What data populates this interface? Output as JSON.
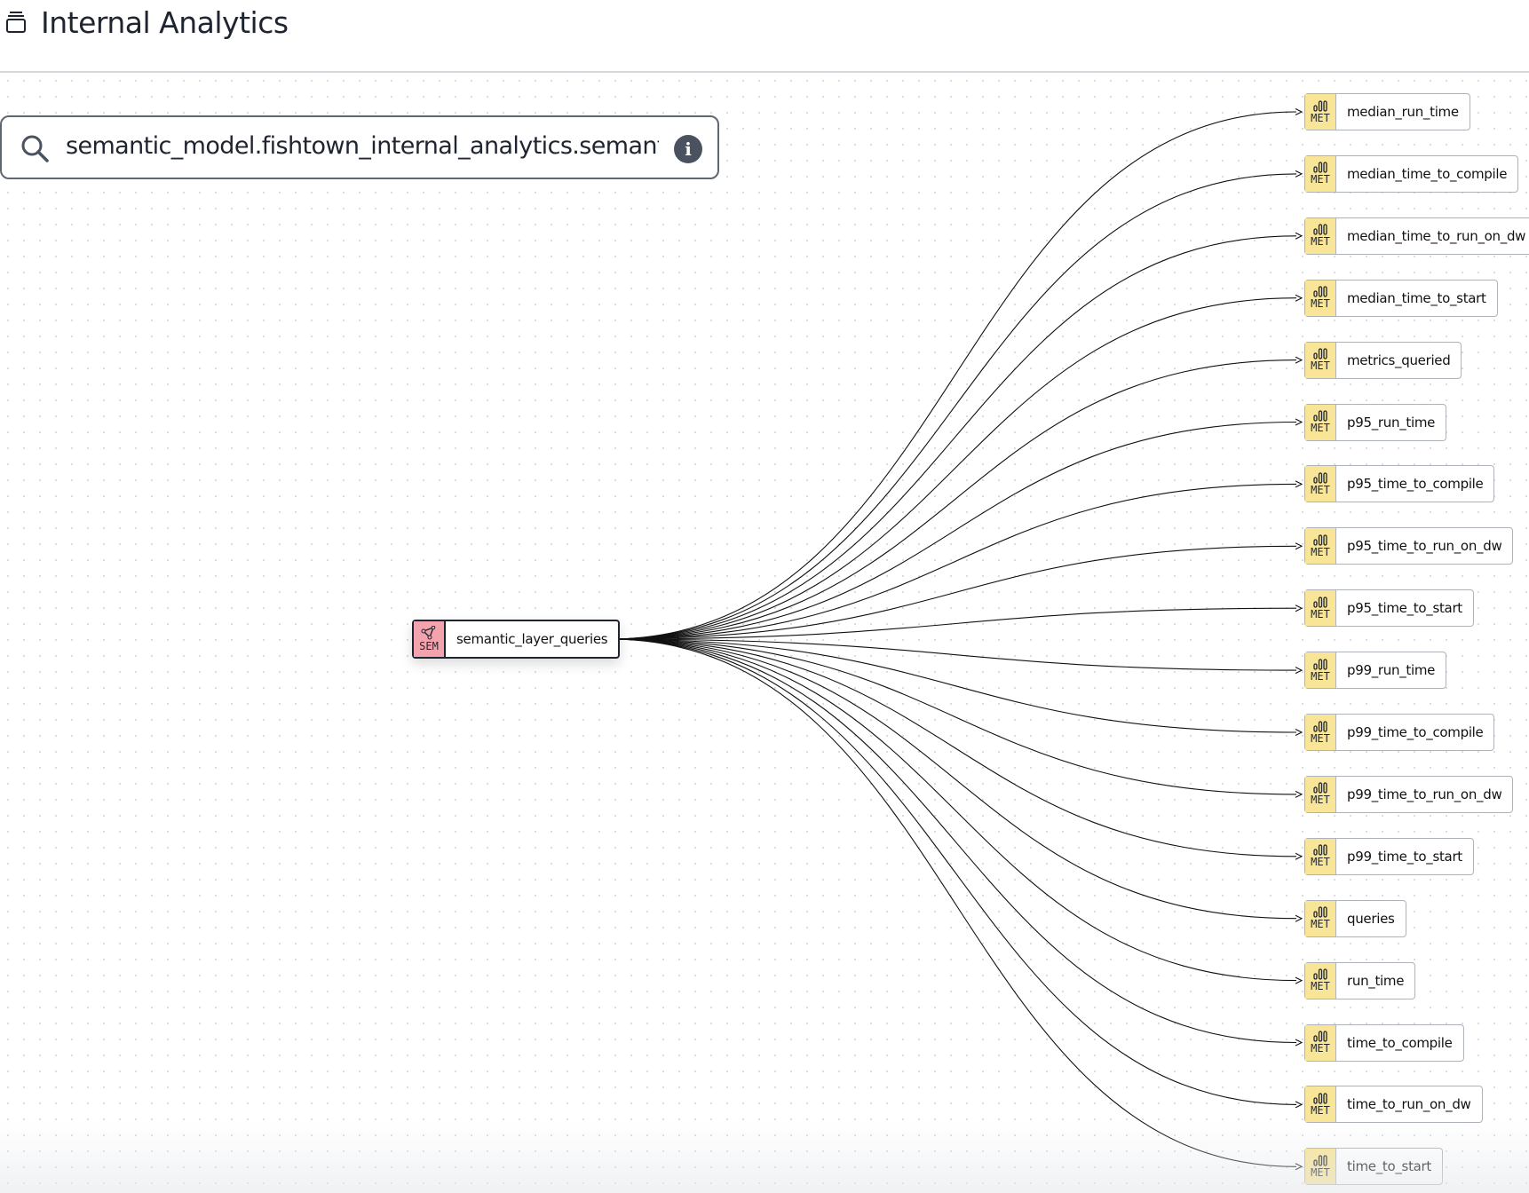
{
  "header": {
    "title": "Internal Analytics",
    "icon": "stack-icon"
  },
  "search": {
    "value": "semantic_model.fishtown_internal_analytics.semantic_layer_queries",
    "icon": "search-icon",
    "info_icon": "info-icon"
  },
  "source": {
    "badge": "SEM",
    "label": "semantic_layer_queries",
    "color": "#f2a3ad"
  },
  "metrics": {
    "badge": "MET",
    "color": "#f8e597",
    "items": [
      "median_run_time",
      "median_time_to_compile",
      "median_time_to_run_on_dw",
      "median_time_to_start",
      "metrics_queried",
      "p95_run_time",
      "p95_time_to_compile",
      "p95_time_to_run_on_dw",
      "p95_time_to_start",
      "p99_run_time",
      "p99_time_to_compile",
      "p99_time_to_run_on_dw",
      "p99_time_to_start",
      "queries",
      "run_time",
      "time_to_compile",
      "time_to_run_on_dw",
      "time_to_start"
    ]
  }
}
